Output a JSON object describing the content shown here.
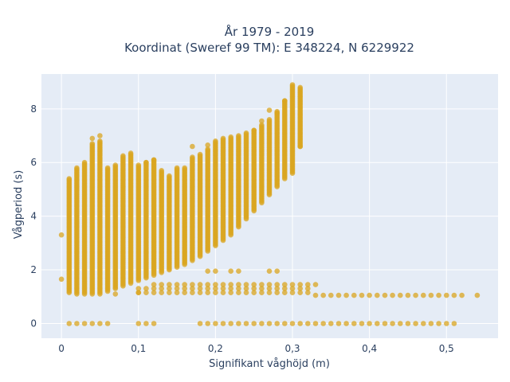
{
  "chart_data": {
    "type": "scatter",
    "title": [
      "År 1979 - 2019",
      "Koordinat (Sweref 99 TM): E 348224, N 6229922"
    ],
    "xlabel": "Signifikant våghöjd (m)",
    "ylabel": "Vågperiod (s)",
    "xlim": [
      -0.026,
      0.567
    ],
    "ylim": [
      -0.55,
      9.3
    ],
    "x_ticks": [
      0,
      0.1,
      0.2,
      0.3,
      0.4,
      0.5
    ],
    "x_tick_labels": [
      "0",
      "0,1",
      "0,2",
      "0,3",
      "0,4",
      "0,5"
    ],
    "y_ticks": [
      0,
      2,
      4,
      6,
      8
    ],
    "y_tick_labels": [
      "0",
      "2",
      "4",
      "6",
      "8"
    ],
    "grid": true,
    "background": "#e5ecf6",
    "marker_color": "#daa520",
    "vertical_bands": [
      {
        "x": 0.01,
        "ymin": 1.15,
        "ymax": 5.4
      },
      {
        "x": 0.02,
        "ymin": 1.1,
        "ymax": 5.8
      },
      {
        "x": 0.03,
        "ymin": 1.1,
        "ymax": 6.0
      },
      {
        "x": 0.04,
        "ymin": 1.1,
        "ymax": 6.7
      },
      {
        "x": 0.05,
        "ymin": 1.1,
        "ymax": 6.8
      },
      {
        "x": 0.06,
        "ymin": 1.2,
        "ymax": 5.8
      },
      {
        "x": 0.07,
        "ymin": 1.3,
        "ymax": 5.9
      },
      {
        "x": 0.08,
        "ymin": 1.4,
        "ymax": 6.2
      },
      {
        "x": 0.09,
        "ymin": 1.5,
        "ymax": 6.3
      },
      {
        "x": 0.1,
        "ymin": 1.6,
        "ymax": 5.9
      },
      {
        "x": 0.11,
        "ymin": 1.7,
        "ymax": 6.0
      },
      {
        "x": 0.12,
        "ymin": 1.8,
        "ymax": 6.1
      },
      {
        "x": 0.13,
        "ymin": 1.9,
        "ymax": 5.7
      },
      {
        "x": 0.14,
        "ymin": 2.0,
        "ymax": 5.5
      },
      {
        "x": 0.15,
        "ymin": 2.1,
        "ymax": 5.8
      },
      {
        "x": 0.16,
        "ymin": 2.2,
        "ymax": 5.8
      },
      {
        "x": 0.17,
        "ymin": 2.35,
        "ymax": 6.2
      },
      {
        "x": 0.18,
        "ymin": 2.5,
        "ymax": 6.3
      },
      {
        "x": 0.19,
        "ymin": 2.7,
        "ymax": 6.5
      },
      {
        "x": 0.2,
        "ymin": 2.9,
        "ymax": 6.8
      },
      {
        "x": 0.21,
        "ymin": 3.1,
        "ymax": 6.9
      },
      {
        "x": 0.22,
        "ymin": 3.3,
        "ymax": 6.9
      },
      {
        "x": 0.23,
        "ymin": 3.6,
        "ymax": 7.0
      },
      {
        "x": 0.24,
        "ymin": 3.9,
        "ymax": 7.1
      },
      {
        "x": 0.25,
        "ymin": 4.2,
        "ymax": 7.2
      },
      {
        "x": 0.26,
        "ymin": 4.5,
        "ymax": 7.4
      },
      {
        "x": 0.27,
        "ymin": 4.8,
        "ymax": 7.6
      },
      {
        "x": 0.28,
        "ymin": 5.1,
        "ymax": 7.9
      },
      {
        "x": 0.29,
        "ymin": 5.4,
        "ymax": 8.3
      },
      {
        "x": 0.3,
        "ymin": 5.6,
        "ymax": 8.9
      },
      {
        "x": 0.31,
        "ymin": 6.6,
        "ymax": 8.8
      }
    ],
    "horizontal_rows": [
      {
        "y": 1.45,
        "xmin": 0.18,
        "xmax": 0.33
      },
      {
        "y": 1.3,
        "xmin": 0.1,
        "xmax": 0.32
      },
      {
        "y": 1.15,
        "xmin": 0.1,
        "xmax": 0.32
      },
      {
        "y": 1.05,
        "xmin": 0.33,
        "xmax": 0.52
      }
    ],
    "zero_row": {
      "y": 0,
      "x_from_left": [
        0.01,
        0.02,
        0.03,
        0.04,
        0.05,
        0.06,
        0.1,
        0.11,
        0.12
      ],
      "x_right": {
        "xmin": 0.18,
        "xmax": 0.51
      }
    },
    "extra_points": [
      {
        "x": 0.0,
        "y": 3.3
      },
      {
        "x": 0.0,
        "y": 1.65
      },
      {
        "x": 0.54,
        "y": 1.05
      },
      {
        "x": 0.19,
        "y": 1.95
      },
      {
        "x": 0.2,
        "y": 1.95
      },
      {
        "x": 0.22,
        "y": 1.95
      },
      {
        "x": 0.23,
        "y": 1.95
      },
      {
        "x": 0.27,
        "y": 1.95
      },
      {
        "x": 0.28,
        "y": 1.95
      },
      {
        "x": 0.07,
        "y": 1.1
      },
      {
        "x": 0.1,
        "y": 1.15
      },
      {
        "x": 0.12,
        "y": 1.45
      },
      {
        "x": 0.13,
        "y": 1.45
      },
      {
        "x": 0.14,
        "y": 1.45
      },
      {
        "x": 0.15,
        "y": 1.45
      },
      {
        "x": 0.16,
        "y": 1.45
      },
      {
        "x": 0.17,
        "y": 1.45
      },
      {
        "x": 0.04,
        "y": 6.9
      },
      {
        "x": 0.05,
        "y": 7.0
      },
      {
        "x": 0.08,
        "y": 6.25
      },
      {
        "x": 0.09,
        "y": 6.35
      },
      {
        "x": 0.11,
        "y": 6.0
      },
      {
        "x": 0.12,
        "y": 6.1
      },
      {
        "x": 0.17,
        "y": 6.6
      },
      {
        "x": 0.19,
        "y": 6.65
      },
      {
        "x": 0.22,
        "y": 6.95
      },
      {
        "x": 0.25,
        "y": 7.2
      },
      {
        "x": 0.26,
        "y": 7.55
      },
      {
        "x": 0.27,
        "y": 7.95
      },
      {
        "x": 0.28,
        "y": 7.85
      },
      {
        "x": 0.29,
        "y": 8.3
      },
      {
        "x": 0.31,
        "y": 6.6
      }
    ]
  }
}
